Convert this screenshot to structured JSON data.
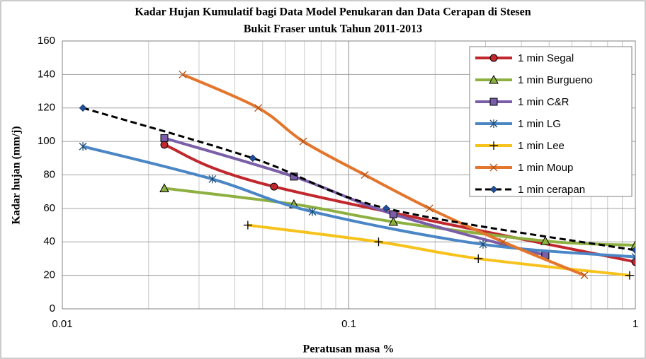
{
  "chart_data": {
    "type": "line",
    "title": "Kadar Hujan Kumulatif bagi Data Model Penukaran dan Data Cerapan di Stesen",
    "subtitle": "Bukit Fraser untuk Tahun 2011-2013",
    "x_label": "Peratusan masa %",
    "y_label": "Kadar hujan (mm/j)",
    "xscale": "log",
    "xlim": [
      0.01,
      1
    ],
    "ylim": [
      0,
      160
    ],
    "xticks": [
      0.01,
      0.1,
      1
    ],
    "xminorticks": [
      0.02,
      0.03,
      0.04,
      0.05,
      0.06,
      0.07,
      0.08,
      0.09,
      0.2,
      0.3,
      0.4,
      0.5,
      0.6,
      0.7,
      0.8,
      0.9
    ],
    "yticks": [
      0,
      20,
      40,
      60,
      80,
      100,
      120,
      140,
      160
    ],
    "grid": true,
    "legend": "upper right",
    "series": [
      {
        "name": "1 min Segal",
        "color": "#c0282d",
        "marker": "circle",
        "x": [
          0.0227,
          0.0548,
          1
        ],
        "values": [
          98,
          73,
          28
        ]
      },
      {
        "name": "1 min Burgueno",
        "color": "#8db040",
        "marker": "triangle",
        "x": [
          0.0227,
          0.0643,
          0.143,
          0.485,
          1
        ],
        "values": [
          72,
          62.5,
          52,
          40.5,
          38
        ]
      },
      {
        "name": "1 min C&R",
        "color": "#7a5ea8",
        "marker": "square",
        "x": [
          0.0227,
          0.0643,
          0.143,
          0.485
        ],
        "values": [
          102,
          79,
          56.5,
          32
        ]
      },
      {
        "name": "1 min LG",
        "color": "#4a86c6",
        "marker": "star",
        "x": [
          0.0118,
          0.0334,
          0.0746,
          0.294,
          1
        ],
        "values": [
          97,
          77.5,
          58,
          38.5,
          31
        ]
      },
      {
        "name": "1 min Lee",
        "color": "#f7c21b",
        "marker": "plus",
        "x": [
          0.0444,
          0.127,
          0.283,
          0.955
        ],
        "values": [
          50,
          40,
          30,
          20
        ]
      },
      {
        "name": "1 min Moup",
        "color": "#e3762c",
        "marker": "cross",
        "x": [
          0.0263,
          0.0483,
          0.0693,
          0.1137,
          0.191,
          0.345,
          0.664
        ],
        "values": [
          140,
          120,
          100,
          80,
          60,
          40,
          20
        ]
      },
      {
        "name": "1 min cerapan",
        "color": "#000000",
        "marker": "diamond",
        "marker_color": "#1f4e9c",
        "dashed": true,
        "x": [
          0.0118,
          0.0462,
          0.135,
          1
        ],
        "values": [
          120,
          90,
          60,
          35
        ]
      }
    ]
  }
}
